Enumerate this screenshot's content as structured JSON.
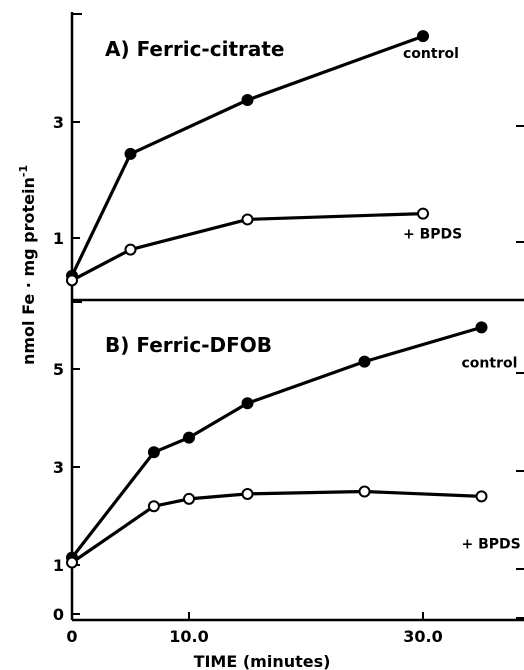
{
  "chart_data": [
    {
      "type": "line",
      "panel": "A",
      "title": "A) Ferric-citrate",
      "ylim": [
        0.2,
        5.0
      ],
      "yticks": [
        1,
        3
      ],
      "xlim": [
        0,
        40
      ],
      "xticks": [
        0,
        10.0,
        30.0
      ],
      "grid": false,
      "series": [
        {
          "name": "control",
          "marker": "filled",
          "x": [
            0,
            5,
            15,
            30
          ],
          "y": [
            0.35,
            2.45,
            3.38,
            4.48
          ]
        },
        {
          "name": "+ BPDS",
          "marker": "open",
          "x": [
            0,
            5,
            15,
            30
          ],
          "y": [
            0.27,
            0.8,
            1.32,
            1.42
          ]
        }
      ]
    },
    {
      "type": "line",
      "panel": "B",
      "title": "B) Ferric-DFOB",
      "ylim": [
        0,
        6.5
      ],
      "yticks": [
        0,
        1,
        3,
        5
      ],
      "xlim": [
        0,
        40
      ],
      "xticks": [
        0,
        10.0,
        30.0
      ],
      "grid": false,
      "series": [
        {
          "name": "control",
          "marker": "filled",
          "x": [
            0,
            7,
            10,
            15,
            25,
            35
          ],
          "y": [
            1.15,
            3.3,
            3.6,
            4.3,
            5.15,
            5.85
          ]
        },
        {
          "name": "+ BPDS",
          "marker": "open",
          "x": [
            0,
            7,
            10,
            15,
            25,
            35
          ],
          "y": [
            1.05,
            2.2,
            2.35,
            2.45,
            2.5,
            2.4
          ]
        }
      ]
    }
  ],
  "axes": {
    "ylabel": "nmol Fe · mg protein",
    "ylabel_sup": "-1",
    "xlabel": "TIME (minutes)",
    "xtick_labels": [
      "0",
      "10.0",
      "30.0"
    ]
  }
}
